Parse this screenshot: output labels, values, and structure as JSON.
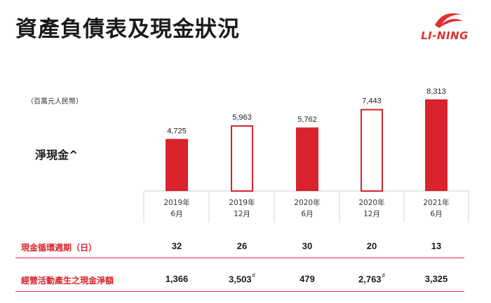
{
  "header": {
    "title": "資產負債表及現金狀況"
  },
  "logo": {
    "text": "LI-NING",
    "color": "#e03030"
  },
  "chart": {
    "unit_label": "（百萬元人民幣）",
    "series_label": "淨現金^"
  },
  "chart_data": {
    "type": "bar",
    "categories": [
      {
        "year": "2019年",
        "month": "6月"
      },
      {
        "year": "2019年",
        "month": "12月"
      },
      {
        "year": "2020年",
        "month": "6月"
      },
      {
        "year": "2020年",
        "month": "12月"
      },
      {
        "year": "2021年",
        "month": "6月"
      }
    ],
    "values": [
      4725,
      5963,
      5762,
      7443,
      8313
    ],
    "value_labels": [
      "4,725",
      "5,963",
      "5,762",
      "7,443",
      "8,313"
    ],
    "bar_style": [
      "filled",
      "outline",
      "filled",
      "outline",
      "filled"
    ],
    "ylim": [
      0,
      8313
    ],
    "bar_color": "#d9232d"
  },
  "table": {
    "rows": [
      {
        "label": "現金循環週期（日）",
        "values": [
          "32",
          "26",
          "30",
          "20",
          "13"
        ],
        "marks": [
          "",
          "",
          "",
          "",
          ""
        ]
      },
      {
        "label": "經營活動產生之現金淨額",
        "values": [
          "1,366",
          "3,503",
          "479",
          "2,763",
          "3,325"
        ],
        "marks": [
          "",
          "#",
          "",
          "#",
          ""
        ]
      }
    ]
  }
}
